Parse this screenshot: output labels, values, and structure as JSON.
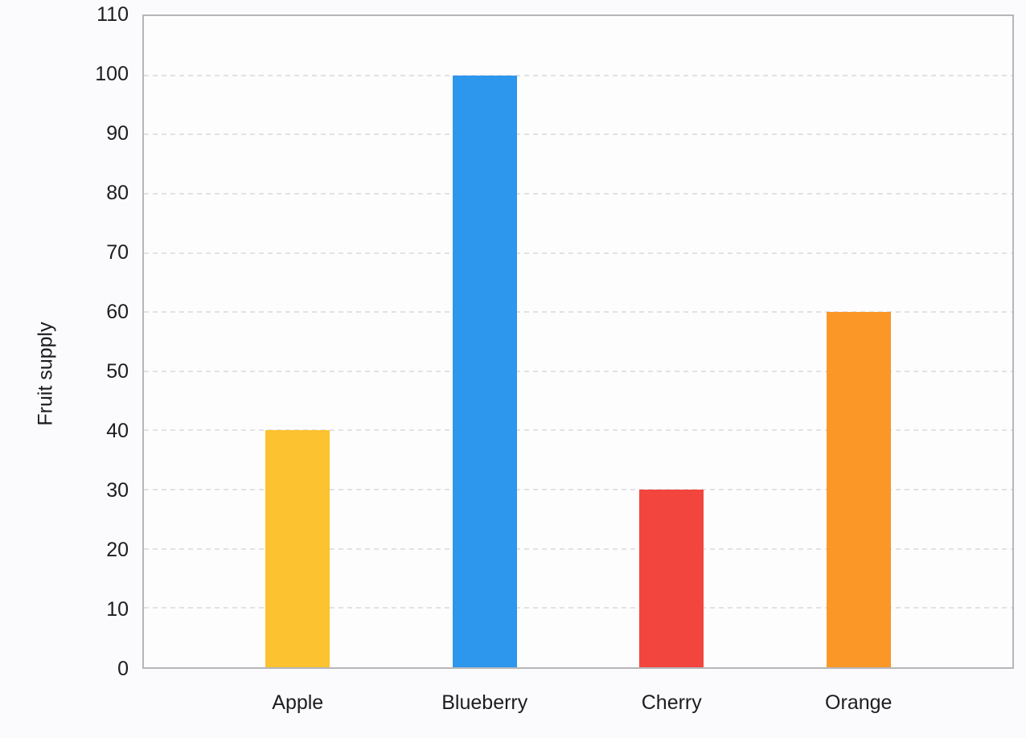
{
  "page": {
    "background": "#fbfbfd"
  },
  "colors": {
    "plot_background": "#fdfdfe",
    "plot_border": "#b6b6b9",
    "gridline": "#e2e2e5",
    "text": "#1d1d1f"
  },
  "chart_data": {
    "type": "bar",
    "title": "",
    "xlabel": "",
    "ylabel": "Fruit supply",
    "categories": [
      "Apple",
      "Blueberry",
      "Cherry",
      "Orange"
    ],
    "values": [
      40,
      100,
      30,
      60
    ],
    "bar_colors": [
      "#fcc22f",
      "#2d96ed",
      "#f2453d",
      "#fa9727"
    ],
    "ylim": [
      0,
      110
    ],
    "yticks": [
      0,
      10,
      20,
      30,
      40,
      50,
      60,
      70,
      80,
      90,
      100,
      110
    ],
    "grid": "horizontal dashed",
    "legend_position": "none"
  }
}
